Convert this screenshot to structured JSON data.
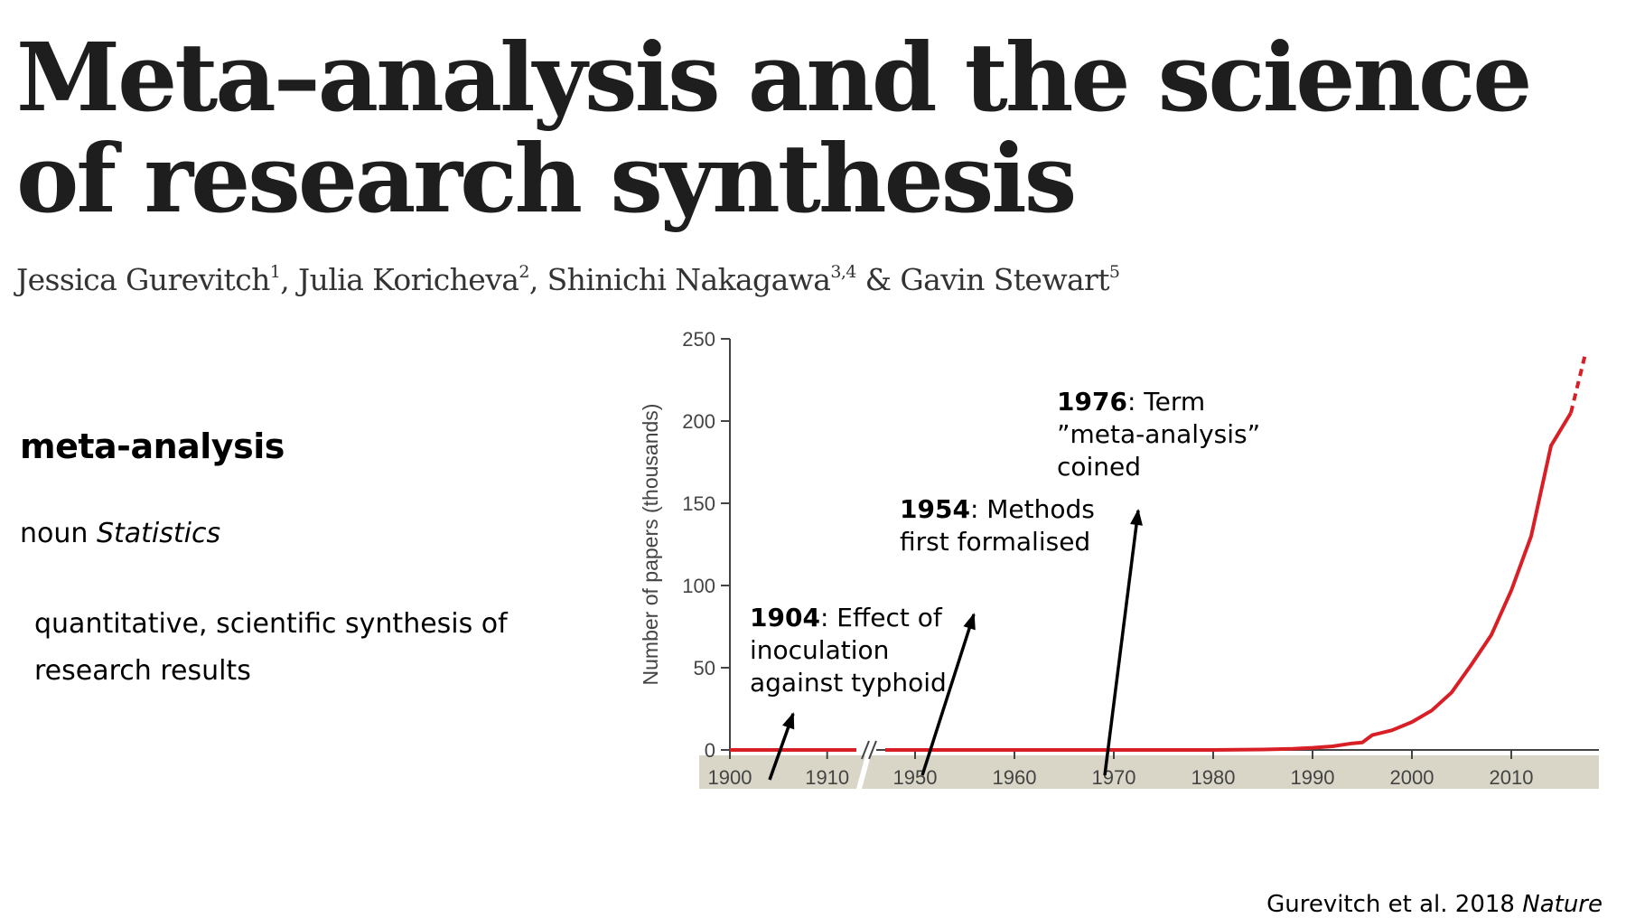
{
  "article": {
    "title": "Meta–analysis and the science of research synthesis",
    "authors": [
      {
        "name": "Jessica Gurevitch",
        "affil": "1",
        "sep": ", "
      },
      {
        "name": "Julia Koricheva",
        "affil": "2",
        "sep": ", "
      },
      {
        "name": "Shinichi Nakagawa",
        "affil": "3,4",
        "sep": " & "
      },
      {
        "name": "Gavin Stewart",
        "affil": "5",
        "sep": ""
      }
    ]
  },
  "definition": {
    "term": "meta-analysis",
    "part_of_speech": "noun",
    "subject": "Statistics",
    "text": "quantitative, scientific synthesis of research results"
  },
  "citation": {
    "text": "Gurevitch et al. 2018",
    "journal": "Nature"
  },
  "chart_data": {
    "type": "line",
    "title": "",
    "xlabel": "",
    "ylabel": "Number of papers (thousands)",
    "ylim": [
      0,
      250
    ],
    "yticks": [
      0,
      50,
      100,
      150,
      200,
      250
    ],
    "x_segments": [
      {
        "range": [
          1900,
          1913
        ],
        "ticks": [
          1900,
          1910
        ]
      },
      {
        "range": [
          1947,
          2019
        ],
        "ticks": [
          1950,
          1960,
          1970,
          1980,
          1990,
          2000,
          2010
        ]
      }
    ],
    "axis_break_between": [
      1913,
      1947
    ],
    "grid": false,
    "line_color": "#d81f26",
    "axis_band_color": "#d9d6c7",
    "series": [
      {
        "style": "solid",
        "points": [
          [
            1900,
            0
          ],
          [
            1913,
            0
          ],
          [
            1947,
            0
          ],
          [
            1980,
            0
          ],
          [
            1985,
            0.3
          ],
          [
            1988,
            0.7
          ],
          [
            1990,
            1.3
          ],
          [
            1992,
            2.2
          ],
          [
            1994,
            4
          ],
          [
            1995,
            4.5
          ],
          [
            1996,
            9
          ],
          [
            1998,
            12
          ],
          [
            2000,
            17
          ],
          [
            2002,
            24
          ],
          [
            2004,
            35
          ],
          [
            2006,
            52
          ],
          [
            2008,
            70
          ],
          [
            2010,
            97
          ],
          [
            2012,
            130
          ],
          [
            2014,
            185
          ],
          [
            2016,
            205
          ]
        ]
      },
      {
        "style": "dashed",
        "points": [
          [
            2016,
            205
          ],
          [
            2017.5,
            242
          ]
        ]
      }
    ],
    "annotations": [
      {
        "year": "1904",
        "lines": [
          ": Effect of",
          "inoculation",
          "against typhoid"
        ],
        "at_year": 1904
      },
      {
        "year": "1954",
        "lines": [
          ": Methods",
          "first formalised"
        ],
        "at_year": 1954
      },
      {
        "year": "1976",
        "lines": [
          ": Term",
          "”meta-analysis”",
          "coined"
        ],
        "at_year": 1976
      }
    ]
  }
}
